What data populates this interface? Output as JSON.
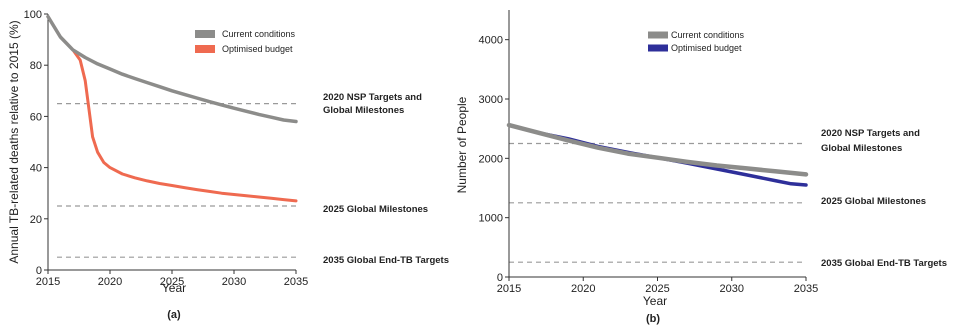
{
  "chart_data": [
    {
      "type": "line",
      "panel_label": "(a)",
      "xlabel": "Year",
      "ylabel": "Annual TB-related deaths relative to 2015 (%)",
      "xlim": [
        2015,
        2035
      ],
      "ylim": [
        0,
        100
      ],
      "xticks": [
        2015,
        2020,
        2025,
        2030,
        2035
      ],
      "yticks": [
        0,
        20,
        40,
        60,
        80,
        100
      ],
      "legend_position": "top-right",
      "series": [
        {
          "name": "Current conditions",
          "color": "#8c8c8a",
          "x": [
            2015,
            2016,
            2017,
            2018,
            2019,
            2020,
            2021,
            2022,
            2023,
            2024,
            2025,
            2026,
            2027,
            2028,
            2029,
            2030,
            2031,
            2032,
            2033,
            2034,
            2035
          ],
          "y": [
            99,
            91,
            86,
            83,
            80.5,
            78.5,
            76.5,
            74.8,
            73.2,
            71.6,
            70,
            68.6,
            67.2,
            65.8,
            64.5,
            63.2,
            62,
            60.8,
            59.7,
            58.6,
            58
          ]
        },
        {
          "name": "Optimised budget",
          "color": "#ef6a50",
          "x": [
            2015,
            2016,
            2017,
            2017.6,
            2018,
            2018.3,
            2018.6,
            2019,
            2019.5,
            2020,
            2021,
            2022,
            2023,
            2024,
            2025,
            2026,
            2027,
            2028,
            2029,
            2030,
            2031,
            2032,
            2033,
            2034,
            2035
          ],
          "y": [
            99,
            91,
            86,
            82,
            74,
            63,
            52,
            46,
            42,
            40,
            37.5,
            36,
            34.8,
            33.8,
            33,
            32.2,
            31.4,
            30.7,
            30,
            29.5,
            29,
            28.5,
            28,
            27.5,
            27
          ]
        }
      ],
      "reference_lines": [
        {
          "y": 65,
          "label": "2020 NSP Targets and Global Milestones"
        },
        {
          "y": 25,
          "label": "2025 Global Milestones"
        },
        {
          "y": 5,
          "label": "2035 Global End-TB Targets"
        }
      ]
    },
    {
      "type": "line",
      "panel_label": "(b)",
      "xlabel": "Year",
      "ylabel": "Number of People",
      "xlim": [
        2015,
        2035
      ],
      "ylim": [
        0,
        4500
      ],
      "xticks": [
        2015,
        2020,
        2025,
        2030,
        2035
      ],
      "yticks": [
        0,
        1000,
        2000,
        3000,
        4000
      ],
      "legend_position": "top-center",
      "series": [
        {
          "name": "Current conditions",
          "color": "#8c8c8a",
          "x": [
            2015,
            2017,
            2019,
            2021,
            2023,
            2025,
            2027,
            2029,
            2031,
            2033,
            2035
          ],
          "y": [
            2560,
            2430,
            2300,
            2180,
            2080,
            2010,
            1940,
            1880,
            1830,
            1780,
            1730
          ]
        },
        {
          "name": "Optimised budget",
          "color": "#2e2f9a",
          "x": [
            2015,
            2017,
            2019,
            2021,
            2023,
            2025,
            2027,
            2029,
            2031,
            2033,
            2034,
            2035
          ],
          "y": [
            2560,
            2430,
            2330,
            2200,
            2100,
            2010,
            1920,
            1820,
            1720,
            1620,
            1570,
            1550
          ]
        }
      ],
      "reference_lines": [
        {
          "y": 2250,
          "label": "2020 NSP Targets and Global Milestones"
        },
        {
          "y": 1250,
          "label": "2025 Global Milestones"
        },
        {
          "y": 250,
          "label": "2035 Global End-TB Targets"
        }
      ]
    }
  ]
}
